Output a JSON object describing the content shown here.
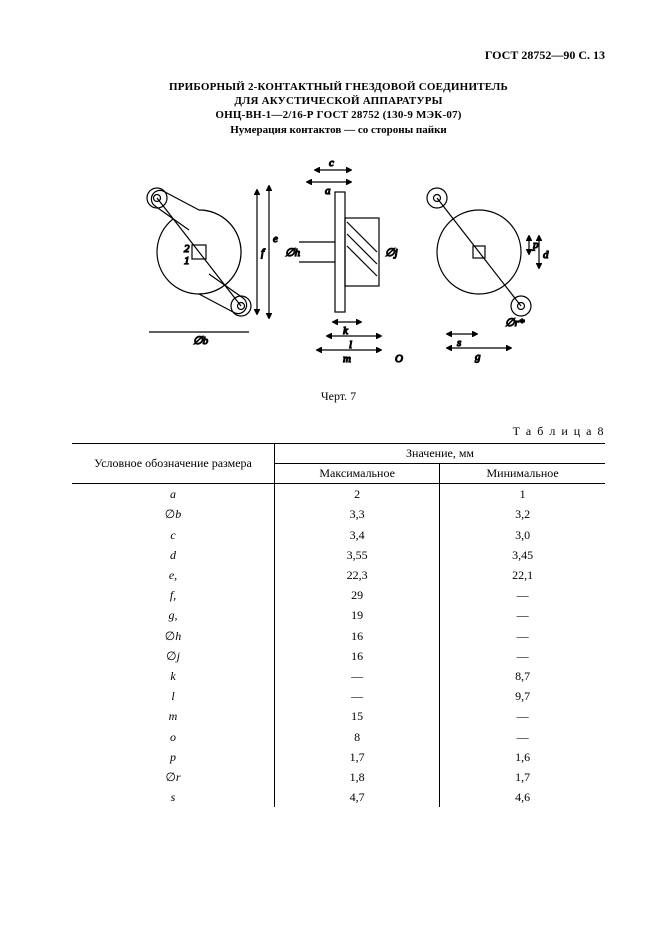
{
  "header": {
    "run": "ГОСТ 28752—90 С. 13"
  },
  "title": {
    "l1": "ПРИБОРНЫЙ 2-КОНТАКТНЫЙ ГНЕЗДОВОЙ СОЕДИНИТЕЛЬ",
    "l2": "ДЛЯ АКУСТИЧЕСКОЙ АППАРАТУРЫ",
    "l3": "ОНЦ-ВН-1—2/16-Р ГОСТ 28752 (130-9 МЭК-07)",
    "l4": "Нумерация контактов — со стороны пайки"
  },
  "figure": {
    "caption": "Черт. 7",
    "labels": {
      "c": "c",
      "a": "a",
      "f": "f",
      "e": "e",
      "n2": "2",
      "n1": "1",
      "ob": "∅b",
      "oh": "∅h",
      "oj": "∅j",
      "k": "k",
      "l": "l",
      "m": "m",
      "O": "O",
      "p": "p",
      "d": "d",
      "or": "∅r*",
      "s": "s",
      "g": "g"
    }
  },
  "table": {
    "caption": "Т а б л и ц а   8",
    "head": {
      "left": "Условное обозначение размера",
      "group": "Значение, мм",
      "max": "Максимальное",
      "min": "Минимальное"
    },
    "rows": [
      {
        "sym": "a",
        "max": "2",
        "min": "1"
      },
      {
        "sym": "∅b",
        "max": "3,3",
        "min": "3,2"
      },
      {
        "sym": "c",
        "max": "3,4",
        "min": "3,0"
      },
      {
        "sym": "d",
        "max": "3,55",
        "min": "3,45"
      },
      {
        "sym": "e,",
        "max": "22,3",
        "min": "22,1"
      },
      {
        "sym": "f,",
        "max": "29",
        "min": "—"
      },
      {
        "sym": "g,",
        "max": "19",
        "min": "—"
      },
      {
        "sym": "∅h",
        "max": "16",
        "min": "—"
      },
      {
        "sym": "∅j",
        "max": "16",
        "min": "—"
      },
      {
        "sym": "k",
        "max": "—",
        "min": "8,7"
      },
      {
        "sym": "l",
        "max": "—",
        "min": "9,7"
      },
      {
        "sym": "m",
        "max": "15",
        "min": "—"
      },
      {
        "sym": "o",
        "max": "8",
        "min": "—"
      },
      {
        "sym": "p",
        "max": "1,7",
        "min": "1,6"
      },
      {
        "sym": "∅r",
        "max": "1,8",
        "min": "1,7"
      },
      {
        "sym": "s",
        "max": "4,7",
        "min": "4,6"
      }
    ]
  },
  "style": {
    "page_bg": "#ffffff",
    "text_color": "#000000",
    "rule_thick": 1.6,
    "rule_thin": 0.8,
    "body_fontsize": 12,
    "title_fontsize": 11,
    "font_family": "Times New Roman"
  }
}
